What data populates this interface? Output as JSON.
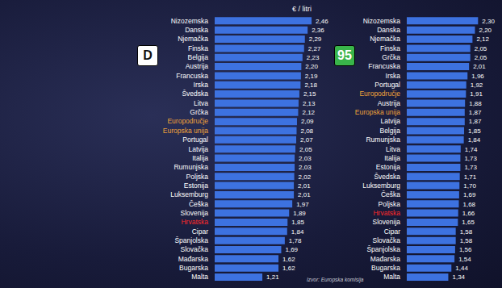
{
  "chart_data": [
    {
      "type": "bar",
      "orientation": "horizontal",
      "title": "D",
      "x_label": "€ / litri",
      "categories": [
        "Nizozemska",
        "Danska",
        "Njemačka",
        "Finska",
        "Belgija",
        "Austrija",
        "Francuska",
        "Irska",
        "Švedska",
        "Litva",
        "Grčka",
        "Europodručje",
        "Europska unija",
        "Portugal",
        "Latvija",
        "Italija",
        "Rumunjska",
        "Poljska",
        "Estonija",
        "Luksemburg",
        "Češka",
        "Slovenija",
        "Hrvatska",
        "Cipar",
        "Španjolska",
        "Slovačka",
        "Mađarska",
        "Bugarska",
        "Malta"
      ],
      "values": [
        2.46,
        2.36,
        2.29,
        2.27,
        2.23,
        2.2,
        2.19,
        2.18,
        2.15,
        2.13,
        2.12,
        2.09,
        2.08,
        2.07,
        2.05,
        2.03,
        2.03,
        2.02,
        2.01,
        2.01,
        1.97,
        1.89,
        1.85,
        1.84,
        1.78,
        1.69,
        1.62,
        1.62,
        1.21
      ],
      "value_labels": [
        "2,46",
        "2,36",
        "2,29",
        "2,27",
        "2,23",
        "2,20",
        "2,19",
        "2,18",
        "2,15",
        "2,13",
        "2,12",
        "2,09",
        "2,08",
        "2,07",
        "2,05",
        "2,03",
        "2,03",
        "2,02",
        "2,01",
        "2,01",
        "1,97",
        "1,89",
        "1,85",
        "1,84",
        "1,78",
        "1,69",
        "1,62",
        "1,62",
        "1,21"
      ],
      "color": "#3d72e0",
      "xlim": [
        0,
        2.5
      ],
      "tick_labels": "y",
      "data_labels": true
    },
    {
      "type": "bar",
      "orientation": "horizontal",
      "title": "95",
      "annotations": [
        "Izvor: Europska komisija"
      ],
      "categories": [
        "Nizozemska",
        "Danska",
        "Njemačka",
        "Finska",
        "Grčka",
        "Francuska",
        "Irska",
        "Portugal",
        "Europodručje",
        "Austrija",
        "Europska unija",
        "Latvija",
        "Belgija",
        "Rumunjska",
        "Litva",
        "Italija",
        "Estonija",
        "Švedska",
        "Luksemburg",
        "Češka",
        "Poljska",
        "Hrvatska",
        "Slovenija",
        "Cipar",
        "Slovačka",
        "Španjolska",
        "Mađarska",
        "Bugarska",
        "Malta"
      ],
      "values": [
        2.3,
        2.2,
        2.12,
        2.05,
        2.05,
        2.01,
        1.96,
        1.92,
        1.91,
        1.88,
        1.87,
        1.87,
        1.85,
        1.84,
        1.74,
        1.73,
        1.73,
        1.71,
        1.7,
        1.69,
        1.68,
        1.66,
        1.65,
        1.58,
        1.58,
        1.56,
        1.54,
        1.44,
        1.34
      ],
      "value_labels": [
        "2,30",
        "2,20",
        "2,12",
        "2,05",
        "2,05",
        "2,01",
        "1,96",
        "1,92",
        "1,91",
        "1,88",
        "1,87",
        "1,87",
        "1,85",
        "1,84",
        "1,74",
        "1,73",
        "1,73",
        "1,71",
        "1,70",
        "1,69",
        "1,68",
        "1,66",
        "1,65",
        "1,58",
        "1,58",
        "1,56",
        "1,54",
        "1,44",
        "1,34"
      ],
      "color": "#3d72e0",
      "xlim": [
        0,
        2.5
      ],
      "tick_labels": "y",
      "data_labels": true
    }
  ]
}
